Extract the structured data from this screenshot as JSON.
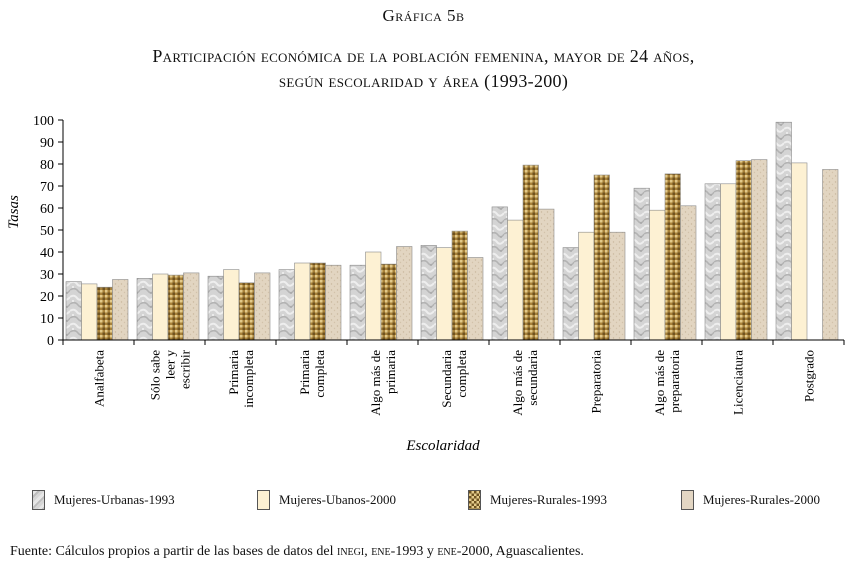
{
  "header": {
    "figure_label": "Gráfica 5b",
    "title_line1": "Participación económica de la población femenina, mayor de 24 años,",
    "title_line2": "según escolaridad y área (1993-200)"
  },
  "footer": {
    "source_prefix": "Fuente: Cálculos propios a partir de las bases de datos del ",
    "source_inegi": "inegi",
    "source_sep1": ", ",
    "source_ene1": "ene",
    "source_mid": "-1993 y ",
    "source_ene2": "ene",
    "source_suffix": "-2000, Aguascalientes."
  },
  "colors": {
    "urbanas_1993": "#cfcfcf",
    "urbanas_2000": "#fdf1d3",
    "rurales_1993": "#b08a3c",
    "rurales_2000": "#e3d6c3",
    "axis": "#000000"
  },
  "chart_data": {
    "type": "bar",
    "title": "Participación económica de la población femenina, mayor de 24 años, según escolaridad y área (1993-200)",
    "xlabel": "Escolaridad",
    "ylabel": "Tasas",
    "ylim": [
      0,
      100
    ],
    "yticks": [
      0,
      10,
      20,
      30,
      40,
      50,
      60,
      70,
      80,
      90,
      100
    ],
    "categories": [
      [
        "Analfabeta"
      ],
      [
        "Sólo sabe",
        "leer y",
        "escribir"
      ],
      [
        "Primaria",
        "incompleta"
      ],
      [
        "Primaria",
        "completa"
      ],
      [
        "Algo más de",
        "primaria"
      ],
      [
        "Secundaria",
        "completa"
      ],
      [
        "Algo más de",
        "secundaria"
      ],
      [
        "Preparatoria"
      ],
      [
        "Algo más de",
        "preparatoria"
      ],
      [
        "Licenciatura"
      ],
      [
        "Postgrado"
      ]
    ],
    "series": [
      {
        "name": "Mujeres-Urbanas-1993",
        "values": [
          26.5,
          28,
          29,
          32,
          34,
          43,
          60.5,
          42,
          69,
          71,
          99
        ]
      },
      {
        "name": "Mujeres-Ubanos-2000",
        "values": [
          25.5,
          30,
          32,
          35,
          40,
          42,
          54.5,
          49,
          59,
          71,
          80.5
        ]
      },
      {
        "name": "Mujeres-Rurales-1993",
        "values": [
          24,
          29.5,
          26,
          35,
          34.5,
          49.5,
          79.5,
          75,
          75.5,
          81.5,
          null
        ]
      },
      {
        "name": "Mujeres-Rurales-2000",
        "values": [
          27.5,
          30.5,
          30.5,
          34,
          42.5,
          37.5,
          59.5,
          49,
          61,
          82,
          77.5
        ]
      }
    ],
    "legend_position": "bottom"
  }
}
